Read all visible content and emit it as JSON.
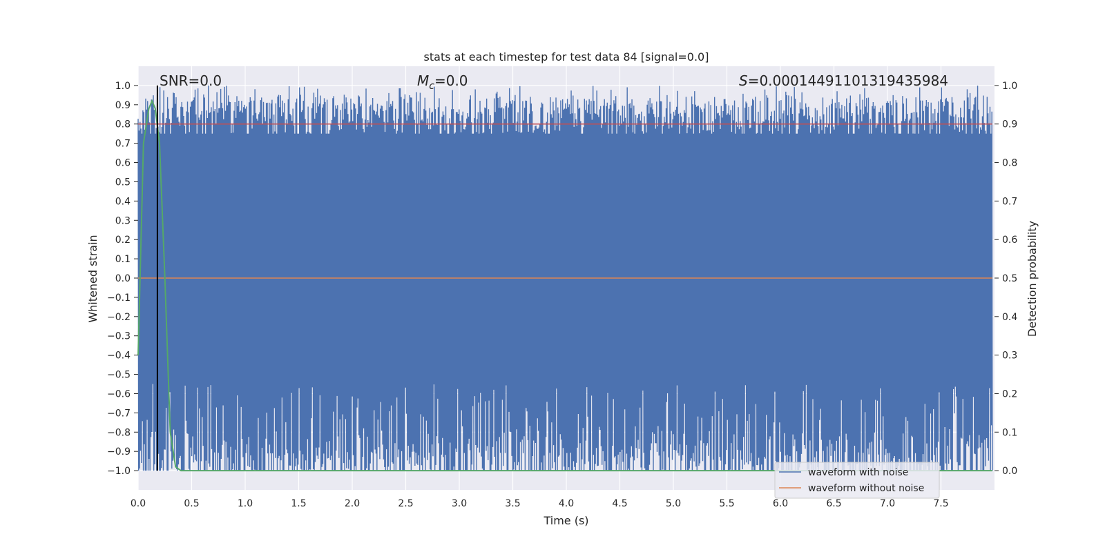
{
  "chart_data": {
    "type": "line",
    "title": "stats at each timestep for test data 84 [signal=0.0]",
    "xlabel": "Time (s)",
    "ylabel": "Whitened strain",
    "y2label": "Detection probability",
    "xlim": [
      0.0,
      8.0
    ],
    "ylim": [
      -1.1,
      1.1
    ],
    "y2lim": [
      -0.05,
      1.05
    ],
    "x_ticks": [
      "0.0",
      "0.5",
      "1.0",
      "1.5",
      "2.0",
      "2.5",
      "3.0",
      "3.5",
      "4.0",
      "4.5",
      "5.0",
      "5.5",
      "6.0",
      "6.5",
      "7.0",
      "7.5"
    ],
    "y_ticks": [
      "1.0",
      "0.9",
      "0.8",
      "0.7",
      "0.6",
      "0.5",
      "0.4",
      "0.3",
      "0.2",
      "0.1",
      "0.0",
      "−0.1",
      "−0.2",
      "−0.3",
      "−0.4",
      "−0.5",
      "−0.6",
      "−0.7",
      "−0.8",
      "−0.9",
      "−1.0"
    ],
    "y2_ticks": [
      "1.0",
      "0.9",
      "0.8",
      "0.7",
      "0.6",
      "0.5",
      "0.4",
      "0.3",
      "0.2",
      "0.1",
      "0.0"
    ],
    "grid": true,
    "annotations": {
      "snr": "SNR=0.0",
      "mc_symbol": "M",
      "mc_sub": "c",
      "mc_value": "=0.0",
      "s_symbol": "S",
      "s_value": "=0.00014491101319435984"
    },
    "legend": {
      "position": "lower-right",
      "entries": [
        "waveform with noise",
        "waveform without noise"
      ]
    },
    "series": [
      {
        "name": "waveform with noise",
        "axis": "left",
        "color": "#4c72b0",
        "description_range": [
          -1.0,
          1.0
        ],
        "noise_lower_envelope": [
          -0.75,
          -0.55
        ],
        "noise_upper_envelope": [
          0.75,
          0.95
        ]
      },
      {
        "name": "waveform without noise",
        "axis": "left",
        "color": "#dd8452",
        "y_constant": 0.0
      },
      {
        "axis": "right",
        "color": "#55a868",
        "x": [
          0.0,
          0.05,
          0.1,
          0.13,
          0.16,
          0.2,
          0.25,
          0.3,
          0.35,
          0.4,
          8.0
        ],
        "y": [
          0.3,
          0.85,
          0.94,
          0.96,
          0.94,
          0.85,
          0.5,
          0.1,
          0.01,
          0.0,
          0.0
        ]
      },
      {
        "axis": "right",
        "color": "#c44e52",
        "y_constant": 0.9
      },
      {
        "axis": "left",
        "color": "#000000",
        "x_constant": 0.18
      }
    ],
    "colors": {
      "background": "#eaeaf2",
      "grid": "#ffffff"
    }
  }
}
